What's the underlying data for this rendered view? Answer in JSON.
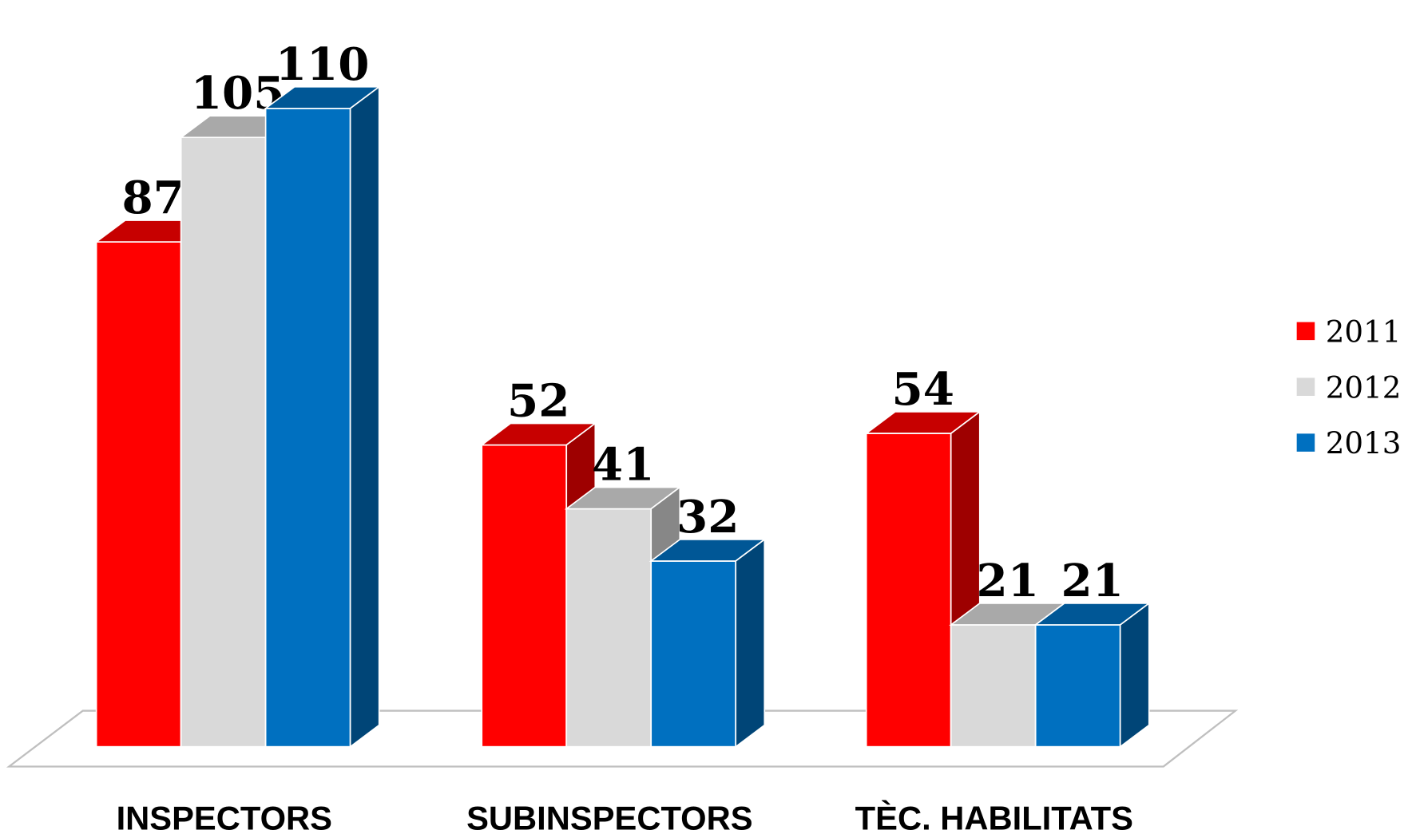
{
  "chart_data": {
    "type": "bar3d",
    "categories": [
      "INSPECTORS",
      "SUBINSPECTORS",
      "TÈC. HABILITATS"
    ],
    "series": [
      {
        "name": "2011",
        "color": "#ff0000",
        "values": [
          87,
          52,
          54
        ]
      },
      {
        "name": "2012",
        "color": "#d9d9d9",
        "values": [
          105,
          41,
          21
        ]
      },
      {
        "name": "2013",
        "color": "#0070c0",
        "values": [
          110,
          32,
          21
        ]
      }
    ],
    "ylim": [
      0,
      120
    ],
    "legend": "right"
  }
}
